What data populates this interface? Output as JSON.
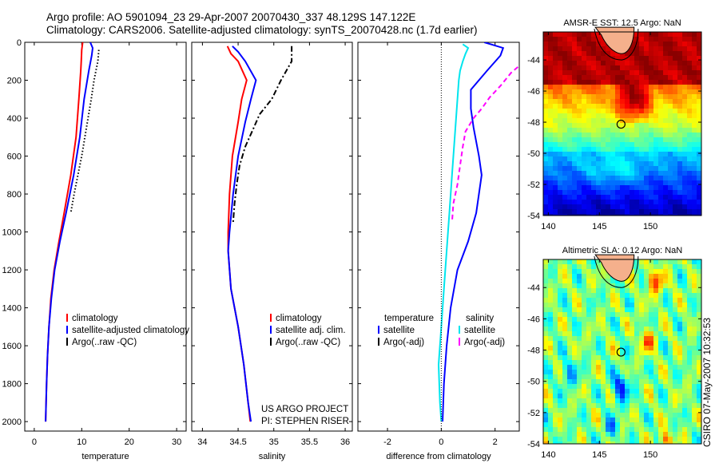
{
  "header": {
    "line1": "Argo profile: AO 5901094_23 29-Apr-2007 20070430_337 48.129S 147.122E",
    "line2": "Climatology: CARS2006. Satellite-adjusted climatology: synTS_20070428.nc (1.7d earlier)"
  },
  "stamp": "CSIRO 07-May-2007 10:32:53",
  "colors": {
    "climatology": "#ff0000",
    "satellite": "#0000ff",
    "argo": "#000000",
    "sat_salinity": "#00e5ee",
    "argo_adj": "#ff00ff"
  },
  "chart_data": [
    {
      "type": "line",
      "name": "temperature-panel",
      "xlabel": "temperature",
      "ylabel": "depth",
      "xlim": [
        -2,
        32
      ],
      "ylim": [
        2050,
        0
      ],
      "xticks": [
        "0",
        "10",
        "20",
        "30"
      ],
      "xtick_values": [
        0,
        10,
        20,
        30
      ],
      "yticks": [
        "0",
        "200",
        "400",
        "600",
        "800",
        "1000",
        "1200",
        "1400",
        "1600",
        "1800",
        "2000"
      ],
      "series": [
        {
          "name": "climatology",
          "style": "solid",
          "color": "#ff0000",
          "points": [
            [
              10.2,
              0
            ],
            [
              10,
              40
            ],
            [
              9.9,
              100
            ],
            [
              9.8,
              150
            ],
            [
              9.4,
              300
            ],
            [
              8.8,
              500
            ],
            [
              7.7,
              700
            ],
            [
              6.3,
              900
            ],
            [
              5.2,
              1050
            ],
            [
              4.2,
              1200
            ],
            [
              3.5,
              1350
            ],
            [
              3.1,
              1500
            ],
            [
              2.8,
              1650
            ],
            [
              2.6,
              1800
            ],
            [
              2.4,
              2000
            ]
          ]
        },
        {
          "name": "satellite-adjusted climatology",
          "style": "solid",
          "color": "#0000ff",
          "points": [
            [
              11.8,
              0
            ],
            [
              12.3,
              30
            ],
            [
              12.1,
              70
            ],
            [
              11.5,
              150
            ],
            [
              10.5,
              300
            ],
            [
              9.6,
              500
            ],
            [
              8.3,
              700
            ],
            [
              6.7,
              900
            ],
            [
              5.4,
              1050
            ],
            [
              4.3,
              1200
            ],
            [
              3.6,
              1350
            ],
            [
              3.1,
              1500
            ],
            [
              2.8,
              1650
            ],
            [
              2.6,
              1800
            ],
            [
              2.4,
              2000
            ]
          ]
        },
        {
          "name": "Argo(..raw -QC)",
          "style": "dotted",
          "color": "#000000",
          "points": [
            [
              13.6,
              40
            ],
            [
              13.4,
              100
            ],
            [
              13.0,
              150
            ],
            [
              12.6,
              200
            ],
            [
              12.0,
              300
            ],
            [
              11.0,
              450
            ],
            [
              10.0,
              600
            ],
            [
              9.2,
              700
            ],
            [
              8.4,
              800
            ],
            [
              7.7,
              900
            ]
          ]
        }
      ],
      "legend": {
        "position": "lower-right",
        "entries": [
          "climatology",
          "satellite-adjusted climatology",
          "Argo(..raw -QC)"
        ]
      }
    },
    {
      "type": "line",
      "name": "salinity-panel",
      "xlabel": "salinity",
      "xlim": [
        33.85,
        36.1
      ],
      "ylim": [
        2050,
        0
      ],
      "xticks": [
        "34",
        "34.5",
        "35",
        "35.5",
        "36"
      ],
      "xtick_values": [
        34,
        34.5,
        35,
        35.5,
        36
      ],
      "series": [
        {
          "name": "climatology",
          "style": "solid",
          "color": "#ff0000",
          "points": [
            [
              34.35,
              20
            ],
            [
              34.4,
              60
            ],
            [
              34.5,
              100
            ],
            [
              34.62,
              200
            ],
            [
              34.55,
              300
            ],
            [
              34.5,
              420
            ],
            [
              34.42,
              600
            ],
            [
              34.38,
              800
            ],
            [
              34.36,
              1000
            ],
            [
              34.36,
              1100
            ],
            [
              34.4,
              1300
            ],
            [
              34.5,
              1500
            ],
            [
              34.58,
              1700
            ],
            [
              34.64,
              1900
            ],
            [
              34.67,
              2000
            ]
          ]
        },
        {
          "name": "satellite adj. clim.",
          "style": "solid",
          "color": "#0000ff",
          "points": [
            [
              34.42,
              20
            ],
            [
              34.5,
              50
            ],
            [
              34.6,
              100
            ],
            [
              34.75,
              200
            ],
            [
              34.68,
              300
            ],
            [
              34.6,
              420
            ],
            [
              34.5,
              600
            ],
            [
              34.43,
              800
            ],
            [
              34.38,
              1000
            ],
            [
              34.36,
              1100
            ],
            [
              34.4,
              1300
            ],
            [
              34.5,
              1500
            ],
            [
              34.58,
              1700
            ],
            [
              34.64,
              1900
            ],
            [
              34.68,
              2000
            ]
          ]
        },
        {
          "name": "Argo(..raw -QC)",
          "style": "dashdot",
          "color": "#000000",
          "points": [
            [
              35.25,
              20
            ],
            [
              35.25,
              100
            ],
            [
              35.1,
              200
            ],
            [
              34.97,
              300
            ],
            [
              34.8,
              380
            ],
            [
              34.72,
              450
            ],
            [
              34.6,
              550
            ],
            [
              34.52,
              650
            ],
            [
              34.48,
              750
            ],
            [
              34.45,
              850
            ],
            [
              34.43,
              950
            ]
          ]
        }
      ],
      "legend": {
        "position": "lower-right",
        "entries": [
          "climatology",
          "satellite adj. clim.",
          "Argo(..raw -QC)"
        ]
      },
      "annotations": [
        "US ARGO PROJECT",
        "PI: STEPHEN RISER"
      ]
    },
    {
      "type": "line",
      "name": "difference-panel",
      "xlabel": "difference from climatology",
      "xlim": [
        -3.1,
        2.9
      ],
      "ylim": [
        2050,
        0
      ],
      "xticks": [
        "-2",
        "0",
        "2"
      ],
      "xtick_values": [
        -2,
        0,
        2
      ],
      "series": [
        {
          "name": "temperature satellite",
          "style": "solid",
          "color": "#0000ff",
          "points": [
            [
              1.6,
              0
            ],
            [
              2.3,
              30
            ],
            [
              2.2,
              70
            ],
            [
              1.7,
              150
            ],
            [
              1.1,
              250
            ],
            [
              1.1,
              350
            ],
            [
              1.2,
              450
            ],
            [
              1.4,
              600
            ],
            [
              1.5,
              700
            ],
            [
              1.4,
              800
            ],
            [
              1.3,
              900
            ],
            [
              1.0,
              1050
            ],
            [
              0.6,
              1200
            ],
            [
              0.35,
              1400
            ],
            [
              0.2,
              1600
            ],
            [
              0.1,
              1800
            ],
            [
              0.05,
              2000
            ]
          ]
        },
        {
          "name": "salinity satellite",
          "style": "solid",
          "color": "#00e5ee",
          "points": [
            [
              0.8,
              10
            ],
            [
              1.0,
              30
            ],
            [
              0.9,
              60
            ],
            [
              0.8,
              100
            ],
            [
              0.7,
              150
            ],
            [
              0.65,
              200
            ],
            [
              0.6,
              300
            ],
            [
              0.5,
              500
            ],
            [
              0.4,
              700
            ],
            [
              0.3,
              900
            ],
            [
              0.2,
              1100
            ],
            [
              0.1,
              1300
            ],
            [
              0.0,
              1500
            ],
            [
              -0.1,
              1700
            ],
            [
              -0.05,
              1900
            ],
            [
              0.0,
              2000
            ]
          ]
        },
        {
          "name": "temperature Argo(-adj)",
          "style": "solid",
          "color": "#000000",
          "points": []
        },
        {
          "name": "salinity Argo(-adj)",
          "style": "dashed",
          "color": "#ff00ff",
          "points": [
            [
              2.85,
              130
            ],
            [
              2.6,
              160
            ],
            [
              2.2,
              230
            ],
            [
              1.8,
              290
            ],
            [
              1.5,
              350
            ],
            [
              1.2,
              400
            ],
            [
              0.9,
              470
            ],
            [
              0.8,
              550
            ],
            [
              0.7,
              650
            ],
            [
              0.6,
              750
            ],
            [
              0.45,
              850
            ],
            [
              0.4,
              950
            ]
          ]
        }
      ],
      "legend": {
        "position": "lower-center",
        "entries": [
          "temperature",
          "satellite",
          "Argo(-adj)",
          "salinity",
          "satellite",
          "Argo(-adj)"
        ]
      }
    },
    {
      "type": "heatmap",
      "name": "sst-map",
      "title": "AMSR-E SST: 12.5 Argo: NaN",
      "xlim": [
        139.5,
        155
      ],
      "ylim": [
        -54,
        -42.2
      ],
      "xticks": [
        "140",
        "145",
        "150"
      ],
      "yticks": [
        "-44",
        "-46",
        "-48",
        "-50",
        "-52",
        "-54"
      ],
      "marker": {
        "lon": 147.122,
        "lat": -48.129
      }
    },
    {
      "type": "heatmap",
      "name": "sla-map",
      "title": "Altimetric SLA: 0.12 Argo: NaN",
      "xlim": [
        139.5,
        155
      ],
      "ylim": [
        -54,
        -42.2
      ],
      "xticks": [
        "140",
        "145",
        "150"
      ],
      "yticks": [
        "-44",
        "-46",
        "-48",
        "-50",
        "-52",
        "-54"
      ],
      "marker": {
        "lon": 147.122,
        "lat": -48.129
      }
    }
  ],
  "legends": {
    "temp": [
      "climatology",
      "satellite-adjusted climatology",
      "Argo(..raw -QC)"
    ],
    "sal": [
      "climatology",
      "satellite adj. clim.",
      "Argo(..raw -QC)"
    ],
    "diff_left_head": "temperature",
    "diff_right_head": "salinity",
    "diff_left": [
      "satellite",
      "Argo(-adj)"
    ],
    "diff_right": [
      "satellite",
      "Argo(-adj)"
    ]
  },
  "annotation": {
    "line1": "US ARGO PROJECT",
    "line2": "PI: STEPHEN RISER"
  },
  "maps": {
    "sst_title": "AMSR-E SST: 12.5 Argo: NaN",
    "sla_title": "Altimetric SLA: 0.12 Argo: NaN"
  }
}
